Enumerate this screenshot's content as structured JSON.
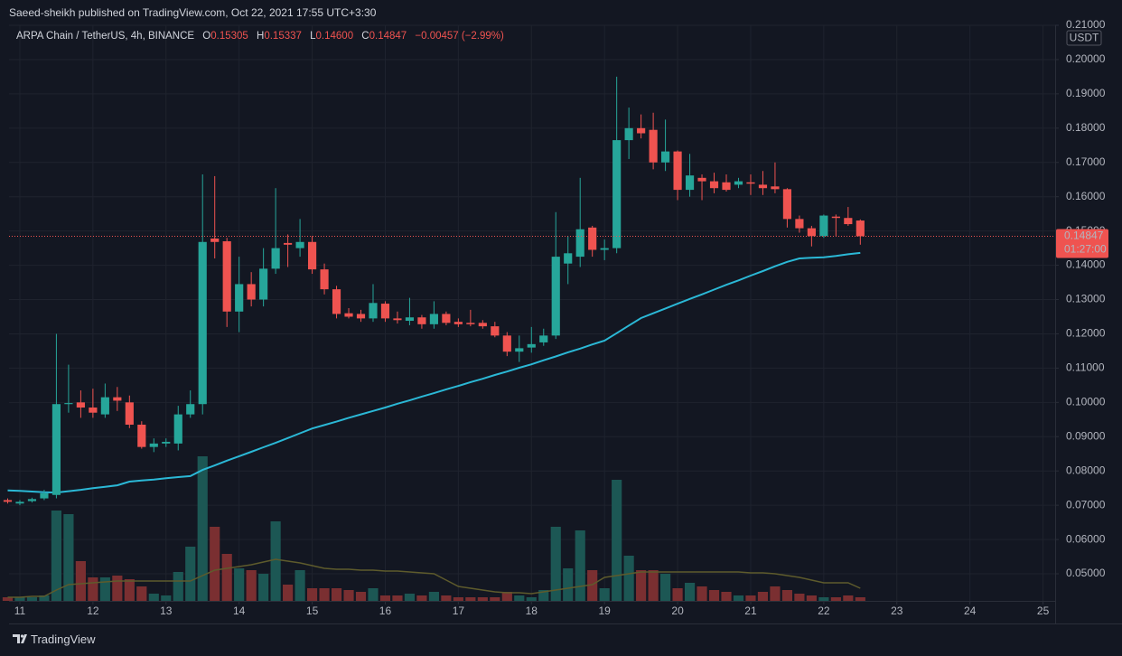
{
  "header": "Saeed-sheikh published on TradingView.com, Oct 22, 2021 17:55 UTC+3:30",
  "legend": {
    "symbol": "ARPA Chain / TetherUS, 4h, BINANCE",
    "open_label": "O",
    "open": "0.15305",
    "high_label": "H",
    "high": "0.15337",
    "low_label": "L",
    "low": "0.14600",
    "close_label": "C",
    "close": "0.14847",
    "change": "−0.00457 (−2.99%)"
  },
  "price_label": "0.14847",
  "countdown": "01:27:00",
  "currency": "USDT",
  "footer": "TradingView",
  "chart_data": {
    "type": "candlestick",
    "up_color": "#26a69a",
    "down_color": "#ef5350",
    "ma_color": "#2bb8d6",
    "volume_ma_color": "#5e5b2c",
    "up_volume_color": "#1c5754",
    "down_volume_color": "#7a2f31",
    "grid": true,
    "xlim": [
      10.852,
      25.166
    ],
    "xticks": [
      11,
      12,
      13,
      14,
      15,
      16,
      17,
      18,
      19,
      20,
      21,
      22,
      23,
      24,
      25
    ],
    "ylim": [
      0.0421,
      0.21
    ],
    "yticks": [
      {
        "value": 0.05,
        "label": "0.05000"
      },
      {
        "value": 0.06,
        "label": "0.06000"
      },
      {
        "value": 0.07,
        "label": "0.07000"
      },
      {
        "value": 0.08,
        "label": "0.08000"
      },
      {
        "value": 0.09,
        "label": "0.09000"
      },
      {
        "value": 0.1,
        "label": "0.10000"
      },
      {
        "value": 0.11,
        "label": "0.11000"
      },
      {
        "value": 0.12,
        "label": "0.12000"
      },
      {
        "value": 0.13,
        "label": "0.13000"
      },
      {
        "value": 0.14,
        "label": "0.14000"
      },
      {
        "value": 0.15,
        "label": "0.15000"
      },
      {
        "value": 0.16,
        "label": "0.16000"
      },
      {
        "value": 0.17,
        "label": "0.17000"
      },
      {
        "value": 0.18,
        "label": "0.18000"
      },
      {
        "value": 0.19,
        "label": "0.19000"
      },
      {
        "value": 0.2,
        "label": "0.20000"
      },
      {
        "value": 0.21,
        "label": "0.21000"
      }
    ],
    "volume_lim": [
      0,
      400
    ],
    "x": [
      10.8333,
      11,
      11.1667,
      11.3333,
      11.5,
      11.6667,
      11.8333,
      12,
      12.1667,
      12.3333,
      12.5,
      12.6667,
      12.8333,
      13,
      13.1667,
      13.3333,
      13.5,
      13.6667,
      13.8333,
      14,
      14.1667,
      14.3333,
      14.5,
      14.6667,
      14.8333,
      15,
      15.1667,
      15.3333,
      15.5,
      15.6667,
      15.8333,
      16,
      16.1667,
      16.3333,
      16.5,
      16.6667,
      16.8333,
      17,
      17.1667,
      17.3333,
      17.5,
      17.6667,
      17.8333,
      18,
      18.1667,
      18.3333,
      18.5,
      18.6667,
      18.8333,
      19,
      19.1667,
      19.3333,
      19.5,
      19.6667,
      19.8333,
      20,
      20.1667,
      20.3333,
      20.5,
      20.6667,
      20.8333,
      21,
      21.1667,
      21.3333,
      21.5,
      21.6667,
      21.8333,
      22,
      22.1667,
      22.3333,
      22.5
    ],
    "open": [
      0.0715,
      0.0705,
      0.0712,
      0.072,
      0.073,
      0.0995,
      0.1,
      0.0985,
      0.0965,
      0.1015,
      0.1,
      0.0935,
      0.087,
      0.088,
      0.088,
      0.0965,
      0.0995,
      0.1478,
      0.147,
      0.1265,
      0.1345,
      0.13,
      0.139,
      0.1465,
      0.145,
      0.1468,
      0.1388,
      0.133,
      0.126,
      0.1258,
      0.1245,
      0.1288,
      0.1245,
      0.1238,
      0.1248,
      0.1228,
      0.1258,
      0.1235,
      0.1232,
      0.1232,
      0.1222,
      0.1195,
      0.1148,
      0.116,
      0.1175,
      0.1195,
      0.1405,
      0.1425,
      0.151,
      0.1445,
      0.145,
      0.1765,
      0.18,
      0.1795,
      0.17,
      0.1732,
      0.162,
      0.1655,
      0.1645,
      0.1642,
      0.1635,
      0.1642,
      0.1635,
      0.163,
      0.1622,
      0.1535,
      0.1508,
      0.1485,
      0.1542,
      0.1538,
      0.15305
    ],
    "high": [
      0.072,
      0.0715,
      0.0722,
      0.0745,
      0.12,
      0.111,
      0.1035,
      0.104,
      0.1055,
      0.1045,
      0.102,
      0.0945,
      0.0895,
      0.0895,
      0.099,
      0.1035,
      0.1665,
      0.166,
      0.148,
      0.1425,
      0.138,
      0.145,
      0.1625,
      0.149,
      0.1535,
      0.1485,
      0.1405,
      0.134,
      0.1275,
      0.127,
      0.1345,
      0.1295,
      0.1265,
      0.1305,
      0.1255,
      0.1295,
      0.1265,
      0.1245,
      0.127,
      0.124,
      0.1235,
      0.1205,
      0.1195,
      0.122,
      0.1215,
      0.1555,
      0.1485,
      0.1655,
      0.1515,
      0.1475,
      0.195,
      0.186,
      0.184,
      0.1845,
      0.1825,
      0.1735,
      0.1725,
      0.1665,
      0.167,
      0.1665,
      0.1655,
      0.1665,
      0.1675,
      0.17,
      0.1625,
      0.1545,
      0.1515,
      0.1548,
      0.1548,
      0.157,
      0.15337
    ],
    "low": [
      0.0705,
      0.07,
      0.0708,
      0.0715,
      0.072,
      0.097,
      0.0955,
      0.0955,
      0.0955,
      0.0975,
      0.0925,
      0.0865,
      0.0855,
      0.087,
      0.086,
      0.0955,
      0.0965,
      0.142,
      0.122,
      0.1205,
      0.128,
      0.128,
      0.1375,
      0.1395,
      0.1425,
      0.1375,
      0.1315,
      0.1245,
      0.1245,
      0.1235,
      0.1235,
      0.1235,
      0.123,
      0.1225,
      0.1215,
      0.1215,
      0.1225,
      0.122,
      0.1222,
      0.1215,
      0.119,
      0.1135,
      0.1118,
      0.1145,
      0.1165,
      0.1185,
      0.1345,
      0.1395,
      0.1425,
      0.1415,
      0.1435,
      0.171,
      0.177,
      0.168,
      0.1675,
      0.159,
      0.16,
      0.159,
      0.161,
      0.1615,
      0.1625,
      0.1605,
      0.1605,
      0.161,
      0.151,
      0.1495,
      0.1455,
      0.148,
      0.1485,
      0.1515,
      0.146
    ],
    "close": [
      0.071,
      0.071,
      0.0718,
      0.0735,
      0.0995,
      0.0998,
      0.0985,
      0.097,
      0.1015,
      0.1005,
      0.0935,
      0.087,
      0.088,
      0.0885,
      0.0965,
      0.0995,
      0.1468,
      0.1468,
      0.1265,
      0.1345,
      0.13,
      0.139,
      0.145,
      0.146,
      0.1468,
      0.1388,
      0.133,
      0.1258,
      0.125,
      0.1245,
      0.129,
      0.1245,
      0.124,
      0.1248,
      0.1228,
      0.1258,
      0.1232,
      0.1228,
      0.1228,
      0.1222,
      0.1195,
      0.1148,
      0.1158,
      0.117,
      0.1195,
      0.1425,
      0.1435,
      0.1505,
      0.1445,
      0.145,
      0.1765,
      0.18,
      0.1785,
      0.17,
      0.1732,
      0.162,
      0.1662,
      0.1645,
      0.1625,
      0.162,
      0.1645,
      0.1638,
      0.1625,
      0.1622,
      0.1535,
      0.1508,
      0.1485,
      0.1545,
      0.1538,
      0.152,
      0.14847
    ],
    "ma": [
      0.0743,
      0.0742,
      0.074,
      0.0738,
      0.0737,
      0.0741,
      0.0745,
      0.075,
      0.0754,
      0.0758,
      0.0769,
      0.0772,
      0.0775,
      0.0779,
      0.0782,
      0.0785,
      0.0803,
      0.0816,
      0.083,
      0.0843,
      0.0856,
      0.0869,
      0.0882,
      0.0896,
      0.091,
      0.0924,
      0.0934,
      0.0944,
      0.0955,
      0.0965,
      0.0975,
      0.0985,
      0.0996,
      0.1006,
      0.1017,
      0.1027,
      0.1038,
      0.1048,
      0.1059,
      0.1069,
      0.108,
      0.109,
      0.1101,
      0.1111,
      0.1123,
      0.1134,
      0.1146,
      0.1157,
      0.1169,
      0.118,
      0.1202,
      0.1224,
      0.1246,
      0.126,
      0.1274,
      0.1288,
      0.1302,
      0.1315,
      0.1329,
      0.1343,
      0.1356,
      0.137,
      0.1383,
      0.1397,
      0.141,
      0.142,
      0.1422,
      0.1423,
      0.1427,
      0.1432,
      0.1436
    ],
    "volume": [
      4,
      4,
      4,
      6,
      100,
      96,
      44,
      26,
      26,
      28,
      24,
      16,
      8,
      6,
      32,
      60,
      160,
      82,
      52,
      36,
      34,
      30,
      88,
      18,
      34,
      14,
      14,
      14,
      12,
      10,
      14,
      6,
      6,
      8,
      6,
      10,
      6,
      4,
      4,
      4,
      4,
      10,
      6,
      4,
      12,
      82,
      36,
      78,
      34,
      14,
      134,
      50,
      34,
      34,
      30,
      14,
      20,
      16,
      12,
      10,
      6,
      6,
      10,
      16,
      12,
      8,
      6,
      4,
      4,
      6,
      4
    ],
    "volume_ma": [
      4,
      4,
      5,
      5,
      12,
      18,
      19,
      20,
      21,
      22,
      22,
      22,
      22,
      22,
      22,
      22,
      28,
      34,
      36,
      38,
      40,
      43,
      46,
      44,
      42,
      39,
      36,
      35,
      35,
      34,
      34,
      33,
      33,
      32,
      31,
      30,
      23,
      16,
      14,
      12,
      10,
      9,
      9,
      8,
      10,
      12,
      14,
      16,
      18,
      26,
      28,
      30,
      32,
      32,
      32,
      32,
      32,
      32,
      32,
      32,
      32,
      31,
      31,
      30,
      28,
      26,
      23,
      20,
      20,
      20,
      14
    ]
  }
}
